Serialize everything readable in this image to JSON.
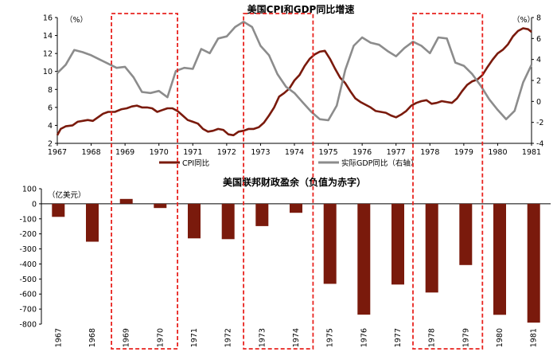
{
  "chart_data": [
    {
      "type": "line",
      "title": "美国CPI和GDP同比增速",
      "x_unit": "year",
      "xlim": [
        1967,
        1981
      ],
      "x_ticks": [
        "1967",
        "1968",
        "1969",
        "1970",
        "1971",
        "1972",
        "1973",
        "1974",
        "1975",
        "1976",
        "1977",
        "1978",
        "1979",
        "1980",
        "1981"
      ],
      "left_axis": {
        "unit": "（%）",
        "ylim": [
          2,
          16
        ],
        "ticks": [
          "2",
          "4",
          "6",
          "8",
          "10",
          "12",
          "14",
          "16"
        ]
      },
      "right_axis": {
        "unit": "（%）",
        "ylim": [
          -4,
          8
        ],
        "ticks": [
          "-4",
          "-2",
          "0",
          "2",
          "4",
          "6",
          "8"
        ]
      },
      "legend_position": "bottom-center",
      "colors": {
        "cpi": "#7a1a0c",
        "gdp": "#8c8c8c",
        "highlight": "#e8231f"
      },
      "series": [
        {
          "name": "CPI同比",
          "axis": "left",
          "x": [
            1967.0,
            1967.1,
            1967.25,
            1967.45,
            1967.6,
            1967.75,
            1967.9,
            1968.05,
            1968.2,
            1968.35,
            1968.5,
            1968.7,
            1968.9,
            1969.05,
            1969.2,
            1969.35,
            1969.5,
            1969.65,
            1969.8,
            1969.95,
            1970.1,
            1970.25,
            1970.4,
            1970.55,
            1970.7,
            1970.85,
            1971.0,
            1971.15,
            1971.3,
            1971.45,
            1971.6,
            1971.75,
            1971.9,
            1972.05,
            1972.2,
            1972.35,
            1972.5,
            1972.65,
            1972.8,
            1972.95,
            1973.1,
            1973.25,
            1973.4,
            1973.55,
            1973.7,
            1973.85,
            1974.0,
            1974.15,
            1974.3,
            1974.45,
            1974.6,
            1974.75,
            1974.9,
            1975.05,
            1975.2,
            1975.35,
            1975.5,
            1975.65,
            1975.8,
            1975.95,
            1976.1,
            1976.25,
            1976.4,
            1976.55,
            1976.7,
            1976.85,
            1977.0,
            1977.15,
            1977.3,
            1977.45,
            1977.6,
            1977.75,
            1977.9,
            1978.05,
            1978.2,
            1978.35,
            1978.5,
            1978.65,
            1978.8,
            1978.95,
            1979.1,
            1979.25,
            1979.4,
            1979.55,
            1979.7,
            1979.85,
            1980.0,
            1980.15,
            1980.3,
            1980.45,
            1980.6,
            1980.75,
            1980.9,
            1981.0
          ],
          "values": [
            2.9,
            3.6,
            3.9,
            4.0,
            4.4,
            4.5,
            4.6,
            4.5,
            4.9,
            5.3,
            5.5,
            5.5,
            5.8,
            5.9,
            6.1,
            6.2,
            6.0,
            6.0,
            5.9,
            5.5,
            5.7,
            5.9,
            5.9,
            5.6,
            5.1,
            4.6,
            4.4,
            4.2,
            3.6,
            3.3,
            3.4,
            3.6,
            3.5,
            3.0,
            2.9,
            3.3,
            3.4,
            3.6,
            3.6,
            3.8,
            4.3,
            5.1,
            6.0,
            7.2,
            7.6,
            8.1,
            9.0,
            9.6,
            10.6,
            11.4,
            11.9,
            12.2,
            12.3,
            11.4,
            10.3,
            9.3,
            8.7,
            7.8,
            7.0,
            6.6,
            6.3,
            6.0,
            5.6,
            5.5,
            5.4,
            5.1,
            4.9,
            5.2,
            5.6,
            6.2,
            6.5,
            6.7,
            6.8,
            6.4,
            6.5,
            6.7,
            6.6,
            6.5,
            7.0,
            7.8,
            8.5,
            8.9,
            9.1,
            9.6,
            10.5,
            11.3,
            12.0,
            12.4,
            13.0,
            13.9,
            14.5,
            14.8,
            14.7,
            14.4
          ]
        },
        {
          "name": "实际GDP同比（右轴）",
          "axis": "right",
          "x": [
            1967.0,
            1967.25,
            1967.5,
            1967.75,
            1968.0,
            1968.25,
            1968.5,
            1968.75,
            1969.0,
            1969.25,
            1969.5,
            1969.75,
            1970.0,
            1970.25,
            1970.5,
            1970.75,
            1971.0,
            1971.25,
            1971.5,
            1971.75,
            1972.0,
            1972.25,
            1972.5,
            1972.75,
            1973.0,
            1973.25,
            1973.5,
            1973.75,
            1974.0,
            1974.25,
            1974.5,
            1974.75,
            1975.0,
            1975.25,
            1975.5,
            1975.75,
            1976.0,
            1976.25,
            1976.5,
            1976.75,
            1977.0,
            1977.25,
            1977.5,
            1977.75,
            1978.0,
            1978.25,
            1978.5,
            1978.75,
            1979.0,
            1979.25,
            1979.5,
            1979.75,
            1980.0,
            1980.25,
            1980.5,
            1980.75,
            1981.0
          ],
          "values": [
            2.7,
            3.5,
            4.9,
            4.7,
            4.4,
            4.0,
            3.6,
            3.2,
            3.3,
            2.3,
            0.9,
            0.8,
            1.0,
            0.4,
            2.9,
            3.2,
            3.1,
            5.0,
            4.6,
            6.0,
            6.2,
            7.1,
            7.6,
            7.1,
            5.3,
            4.4,
            2.6,
            1.4,
            0.8,
            -0.1,
            -1.0,
            -1.7,
            -1.8,
            -0.4,
            3.0,
            5.3,
            6.1,
            5.6,
            5.4,
            4.8,
            4.3,
            5.1,
            5.7,
            5.3,
            4.6,
            6.1,
            6.0,
            3.7,
            3.4,
            2.6,
            1.5,
            0.2,
            -0.8,
            -1.7,
            -0.9,
            1.8,
            3.5
          ]
        }
      ]
    },
    {
      "type": "bar",
      "title": "美国联邦财政盈余（负值为赤字）",
      "unit": "（亿美元）",
      "ylim": [
        -800,
        100
      ],
      "y_ticks": [
        "100",
        "0",
        "-100",
        "-200",
        "-300",
        "-400",
        "-500",
        "-600",
        "-700",
        "-800"
      ],
      "colors": {
        "bar": "#7a1a0c",
        "highlight": "#e8231f"
      },
      "categories": [
        "1967",
        "1968",
        "1969",
        "1970",
        "1971",
        "1972",
        "1973",
        "1974",
        "1975",
        "1976",
        "1977",
        "1978",
        "1979",
        "1980",
        "1981"
      ],
      "values": [
        -87,
        -252,
        32,
        -28,
        -230,
        -235,
        -148,
        -60,
        -532,
        -737,
        -537,
        -590,
        -407,
        -738,
        -790
      ]
    }
  ],
  "highlight_year_ranges": [
    [
      1968.6,
      1970.55
    ],
    [
      1972.5,
      1974.55
    ],
    [
      1977.5,
      1979.55
    ]
  ]
}
